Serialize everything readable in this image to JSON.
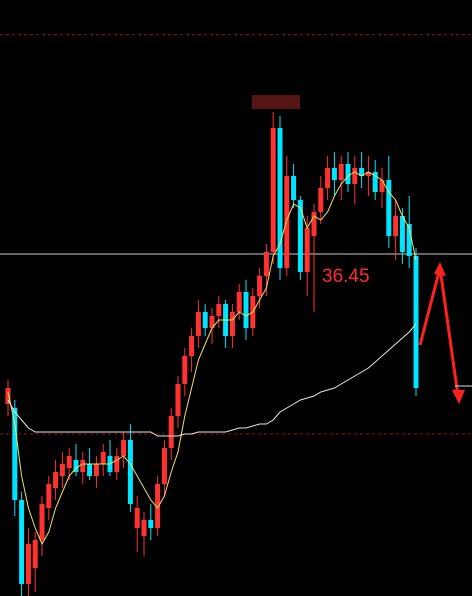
{
  "chart_data": {
    "type": "candlestick",
    "open": [
      32.7,
      32.6,
      30.3,
      28.2,
      28.6,
      29.3,
      30.1,
      30.6,
      30.9,
      31.1,
      31.3,
      31.0,
      31.2,
      30.9,
      31.2,
      31.4,
      31.0,
      31.4,
      31.8,
      29.6,
      29.4,
      29.8,
      29.6,
      30.7,
      31.6,
      32.4,
      33.2,
      33.9,
      34.4,
      35.0,
      34.6,
      34.9,
      35.2,
      34.4,
      35.0,
      35.5,
      34.6,
      35.4,
      35.9,
      36.5,
      39.6,
      36.1,
      38.4,
      37.8,
      36.0,
      36.9,
      37.5,
      38.1,
      38.6,
      38.3,
      38.7,
      38.2,
      38.6,
      38.4,
      38.5,
      38.0,
      38.3,
      36.9,
      37.4,
      37.2,
      36.4
    ],
    "high": [
      33.3,
      32.8,
      30.5,
      29.6,
      29.5,
      30.4,
      30.9,
      31.3,
      31.5,
      31.6,
      31.7,
      31.5,
      31.6,
      31.4,
      31.7,
      31.8,
      31.6,
      32.0,
      32.2,
      30.4,
      30.0,
      30.2,
      30.9,
      31.8,
      32.6,
      33.4,
      34.1,
      34.6,
      35.3,
      35.2,
      35.1,
      35.4,
      35.3,
      35.2,
      35.7,
      35.8,
      35.6,
      36.1,
      36.7,
      40.0,
      39.9,
      38.9,
      38.7,
      37.9,
      37.4,
      37.7,
      38.4,
      38.9,
      39.0,
      38.9,
      39.0,
      38.9,
      39.0,
      38.9,
      38.8,
      38.6,
      38.9,
      37.8,
      37.6,
      37.9,
      36.6
    ],
    "low": [
      32.4,
      29.9,
      27.9,
      27.9,
      28.0,
      28.9,
      29.8,
      30.3,
      30.6,
      30.8,
      30.9,
      30.7,
      30.8,
      30.6,
      30.9,
      30.9,
      30.8,
      31.1,
      30.0,
      29.0,
      28.9,
      29.3,
      29.4,
      30.4,
      31.3,
      32.1,
      32.9,
      33.5,
      34.1,
      34.4,
      34.2,
      34.6,
      34.1,
      34.1,
      34.8,
      34.3,
      34.4,
      35.1,
      35.4,
      36.2,
      35.8,
      35.9,
      37.6,
      35.8,
      35.4,
      35.0,
      37.2,
      37.8,
      37.9,
      37.8,
      38.0,
      37.7,
      38.1,
      37.9,
      37.8,
      37.6,
      36.6,
      36.3,
      36.2,
      36.1,
      32.9
    ],
    "close": [
      33.1,
      30.3,
      28.2,
      29.2,
      29.3,
      30.2,
      30.7,
      31.0,
      31.2,
      31.4,
      31.0,
      31.3,
      30.9,
      31.2,
      31.5,
      31.0,
      31.4,
      31.8,
      30.2,
      30.1,
      29.8,
      29.6,
      30.7,
      31.6,
      32.4,
      33.2,
      33.9,
      34.4,
      35.0,
      34.6,
      34.9,
      35.2,
      34.4,
      35.0,
      35.5,
      34.6,
      35.4,
      35.9,
      36.5,
      39.6,
      36.1,
      38.4,
      37.8,
      36.0,
      37.1,
      37.5,
      38.1,
      38.6,
      38.3,
      38.7,
      38.2,
      38.6,
      38.4,
      38.5,
      38.0,
      38.3,
      36.9,
      37.4,
      36.5,
      36.4,
      33.1
    ],
    "up_color": "#ff3232",
    "down_color": "#00e5ff",
    "lines": [
      {
        "color": "#f0e060",
        "values": [
          33.0,
          32.2,
          30.9,
          30.1,
          29.6,
          29.2,
          29.5,
          30.1,
          30.5,
          30.9,
          31.1,
          31.2,
          31.2,
          31.2,
          31.2,
          31.2,
          31.3,
          31.4,
          31.2,
          30.9,
          30.6,
          30.3,
          30.1,
          30.4,
          31.0,
          31.5,
          32.4,
          33.1,
          33.8,
          34.2,
          34.6,
          34.8,
          34.8,
          34.8,
          35.0,
          34.9,
          35.0,
          35.3,
          35.6,
          36.4,
          36.7,
          37.3,
          37.7,
          37.6,
          37.1,
          37.4,
          37.3,
          37.5,
          37.9,
          38.2,
          38.4,
          38.5,
          38.4,
          38.5,
          38.4,
          38.3,
          38.0,
          37.8,
          37.4,
          37.1,
          36.3
        ]
      },
      {
        "color": "#e8e8e8",
        "values": [
          32.8,
          32.5,
          32.3,
          32.1,
          32.0,
          32.0,
          32.0,
          32.0,
          32.0,
          32.0,
          32.0,
          32.0,
          32.0,
          32.0,
          32.0,
          32.0,
          32.0,
          32.0,
          32.0,
          32.0,
          32.0,
          32.0,
          31.9,
          31.9,
          31.9,
          31.9,
          31.95,
          31.95,
          32.0,
          32.0,
          32.0,
          32.0,
          32.0,
          32.05,
          32.1,
          32.1,
          32.15,
          32.2,
          32.2,
          32.3,
          32.5,
          32.6,
          32.7,
          32.8,
          32.85,
          32.9,
          33.0,
          33.05,
          33.1,
          33.2,
          33.3,
          33.4,
          33.5,
          33.6,
          33.75,
          33.9,
          34.05,
          34.2,
          34.35,
          34.5,
          34.7
        ]
      }
    ],
    "reference_line": {
      "value": 36.45,
      "color": "#cccccc",
      "label_color": "#ff2a2a"
    },
    "dashed_levels": [
      41.93,
      31.95
    ],
    "dashed_color": "#8b1a1a",
    "ylim": [
      27.9,
      42.8
    ]
  }
}
